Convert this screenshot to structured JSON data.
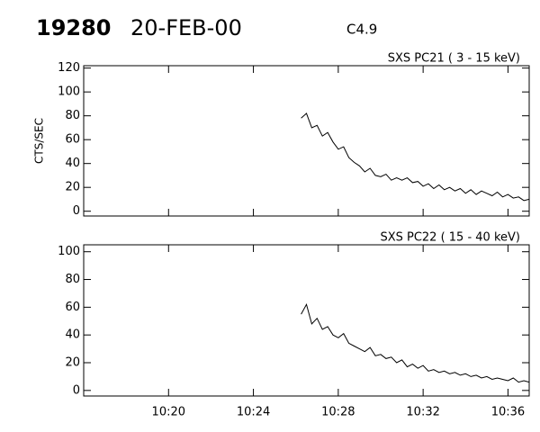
{
  "header": {
    "id": "19280",
    "date": "20-FEB-00",
    "flare_class": "C4.9"
  },
  "chart_data": [
    {
      "type": "line",
      "title": "SXS PC21  (  3 - 15 keV)",
      "y_label": "CTS/SEC",
      "color": "#000000",
      "x": [
        26.25,
        26.5,
        26.75,
        27,
        27.25,
        27.5,
        27.75,
        28,
        28.25,
        28.5,
        28.75,
        29,
        29.25,
        29.5,
        29.75,
        30,
        30.25,
        30.5,
        30.75,
        31,
        31.25,
        31.5,
        31.75,
        32,
        32.25,
        32.5,
        32.75,
        33,
        33.25,
        33.5,
        33.75,
        34,
        34.25,
        34.5,
        34.75,
        35,
        35.25,
        35.5,
        35.75,
        36,
        36.25,
        36.5,
        36.75,
        37
      ],
      "values": [
        78,
        82,
        70,
        72,
        63,
        66,
        58,
        52,
        54,
        45,
        41,
        38,
        33,
        36,
        30,
        29,
        31,
        26,
        28,
        26,
        28,
        24,
        25,
        21,
        23,
        19,
        22,
        18,
        20,
        17,
        19,
        15,
        18,
        14,
        17,
        15,
        13,
        16,
        12,
        14,
        11,
        12,
        9,
        10
      ],
      "xlim": [
        16,
        37
      ],
      "ylim": [
        -4,
        122
      ],
      "yticks": [
        0,
        20,
        40,
        60,
        80,
        100,
        120
      ]
    },
    {
      "type": "line",
      "title": "SXS PC22  ( 15 - 40 keV)",
      "color": "#000000",
      "x": [
        26.25,
        26.5,
        26.75,
        27,
        27.25,
        27.5,
        27.75,
        28,
        28.25,
        28.5,
        28.75,
        29,
        29.25,
        29.5,
        29.75,
        30,
        30.25,
        30.5,
        30.75,
        31,
        31.25,
        31.5,
        31.75,
        32,
        32.25,
        32.5,
        32.75,
        33,
        33.25,
        33.5,
        33.75,
        34,
        34.25,
        34.5,
        34.75,
        35,
        35.25,
        35.5,
        35.75,
        36,
        36.25,
        36.5,
        36.75,
        37
      ],
      "values": [
        55,
        62,
        48,
        52,
        44,
        46,
        40,
        38,
        41,
        34,
        32,
        30,
        28,
        31,
        25,
        26,
        23,
        24,
        20,
        22,
        17,
        19,
        16,
        18,
        14,
        15,
        13,
        14,
        12,
        13,
        11,
        12,
        10,
        11,
        9,
        10,
        8,
        9,
        8,
        7,
        9,
        6,
        7,
        6
      ],
      "xlim": [
        16,
        37
      ],
      "ylim": [
        -4,
        105
      ],
      "yticks": [
        0,
        20,
        40,
        60,
        80,
        100
      ],
      "xticks": [
        {
          "value": 20,
          "label": "10:20"
        },
        {
          "value": 24,
          "label": "10:24"
        },
        {
          "value": 28,
          "label": "10:28"
        },
        {
          "value": 32,
          "label": "10:32"
        },
        {
          "value": 36,
          "label": "10:36"
        }
      ]
    }
  ]
}
